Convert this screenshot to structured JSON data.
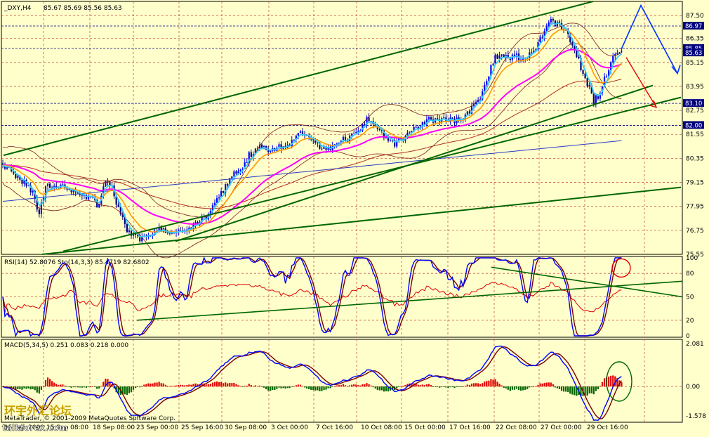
{
  "header": {
    "symbol": "_DXY,H4",
    "ohlc": "85.67 85.69 85.56 85.63"
  },
  "indicators": {
    "rsi_label": "RSI(14) 52.8076",
    "sto_label": "Sto(14,3,3) 85.4719 82.6802",
    "macd_label": "MACD(5,34,5) 0.251 0.083 0.218 0.000"
  },
  "price_axis": {
    "ticks": [
      "87.50",
      "86.35",
      "85.15",
      "83.95",
      "82.75",
      "81.55",
      "80.35",
      "79.15",
      "77.95",
      "76.75",
      "75.55"
    ],
    "tags": [
      {
        "label": "86.97",
        "value": 86.97
      },
      {
        "label": "85.85",
        "value": 85.85
      },
      {
        "label": "85.63",
        "value": 85.63
      },
      {
        "label": "83.10",
        "value": 83.1
      },
      {
        "label": "82.00",
        "value": 82.0
      }
    ]
  },
  "osc_axis": {
    "ticks": [
      "100",
      "80",
      "50",
      "20",
      "0"
    ]
  },
  "macd_axis": {
    "ticks": [
      "2.081",
      "0.00",
      "-1.578"
    ]
  },
  "time_axis": {
    "labels": [
      "15 Sep 2000",
      "15 Sep 08:00",
      "18 Sep 08:00",
      "23 Sep 00:00",
      "25 Sep 16:00",
      "30 Sep 08:00",
      "3 Oct 00:00",
      "7 Oct 16:00",
      "10 Oct 08:00",
      "15 Oct 00:00",
      "17 Oct 16:00",
      "22 Oct 08:00",
      "27 Oct 00:00",
      "29 Oct 16:00"
    ]
  },
  "watermark": {
    "text": "MetaTrader, © 2001-2009 MetaQuotes Software Corp.",
    "site": "talkforex.com",
    "logo_text": "环宇外汇论坛"
  },
  "colors": {
    "background": "#FFFFCC",
    "bull": "#0000FF",
    "bear": "#000080",
    "ema_cyan": "#33CCFF",
    "ema_orange": "#FF9900",
    "ema_magenta": "#FF00FF",
    "sma_red": "#B03020",
    "sma_blue": "#2B39C8",
    "trend_green": "#006600",
    "forecast_blue": "#0033FF",
    "forecast_red": "#E00000",
    "rsi": "#E00000",
    "sto_main": "#0000FF",
    "sto_signal": "#7A0000",
    "hist_pos": "#E00000",
    "hist_neg": "#006600"
  },
  "chart_data": {
    "type": "line",
    "symbol": "_DXY",
    "timeframe": "H4",
    "ylim": [
      75.55,
      88.2
    ],
    "close_anchors": [
      [
        0,
        80.3
      ],
      [
        10,
        79.8
      ],
      [
        20,
        79.6
      ],
      [
        30,
        79.2
      ],
      [
        40,
        79.0
      ],
      [
        50,
        78.4
      ],
      [
        55,
        77.6
      ],
      [
        65,
        78.9
      ],
      [
        80,
        79.0
      ],
      [
        95,
        78.9
      ],
      [
        110,
        78.5
      ],
      [
        125,
        78.4
      ],
      [
        140,
        78.0
      ],
      [
        150,
        79.1
      ],
      [
        158,
        79.0
      ],
      [
        170,
        77.6
      ],
      [
        185,
        76.5
      ],
      [
        195,
        76.4
      ],
      [
        205,
        76.3
      ],
      [
        220,
        76.7
      ],
      [
        235,
        76.8
      ],
      [
        250,
        76.7
      ],
      [
        265,
        76.9
      ],
      [
        280,
        77.0
      ],
      [
        295,
        77.5
      ],
      [
        305,
        78.0
      ],
      [
        320,
        78.8
      ],
      [
        330,
        79.6
      ],
      [
        345,
        79.8
      ],
      [
        355,
        80.5
      ],
      [
        370,
        80.9
      ],
      [
        385,
        80.8
      ],
      [
        400,
        80.9
      ],
      [
        415,
        81.1
      ],
      [
        425,
        81.7
      ],
      [
        440,
        81.5
      ],
      [
        455,
        81.0
      ],
      [
        470,
        80.9
      ],
      [
        485,
        81.2
      ],
      [
        500,
        81.4
      ],
      [
        512,
        81.7
      ],
      [
        525,
        82.4
      ],
      [
        535,
        81.9
      ],
      [
        548,
        81.5
      ],
      [
        560,
        81.1
      ],
      [
        572,
        81.2
      ],
      [
        585,
        81.7
      ],
      [
        598,
        82.0
      ],
      [
        610,
        82.3
      ],
      [
        625,
        82.2
      ],
      [
        640,
        82.3
      ],
      [
        655,
        82.2
      ],
      [
        670,
        82.8
      ],
      [
        685,
        83.5
      ],
      [
        695,
        84.5
      ],
      [
        705,
        85.4
      ],
      [
        715,
        85.6
      ],
      [
        725,
        85.3
      ],
      [
        735,
        85.5
      ],
      [
        745,
        85.3
      ],
      [
        755,
        85.6
      ],
      [
        765,
        86.0
      ],
      [
        775,
        86.6
      ],
      [
        785,
        87.3
      ],
      [
        795,
        87.0
      ],
      [
        805,
        86.9
      ],
      [
        815,
        86.0
      ],
      [
        825,
        85.2
      ],
      [
        832,
        84.3
      ],
      [
        840,
        83.9
      ],
      [
        846,
        83.2
      ],
      [
        852,
        83.5
      ],
      [
        858,
        84.0
      ],
      [
        865,
        84.7
      ],
      [
        872,
        85.3
      ],
      [
        880,
        85.7
      ],
      [
        887,
        85.6
      ]
    ],
    "moving_averages": [
      {
        "name": "EMA fast",
        "color": "#33CCFF"
      },
      {
        "name": "EMA mid",
        "color": "#FF9900"
      },
      {
        "name": "EMA slow",
        "color": "#FF00FF"
      },
      {
        "name": "SMA 100",
        "color": "#B03020"
      },
      {
        "name": "SMA 200",
        "color": "#2B39C8"
      }
    ],
    "trendlines": [
      {
        "from": [
          5,
          80.5
        ],
        "to": [
          845,
          88.2
        ],
        "color": "#006600"
      },
      {
        "from": [
          90,
          75.7
        ],
        "to": [
          970,
          83.4
        ],
        "color": "#006600"
      },
      {
        "from": [
          250,
          76.2
        ],
        "to": [
          930,
          84.0
        ],
        "color": "#006600"
      },
      {
        "from": [
          60,
          75.55
        ],
        "to": [
          970,
          78.9
        ],
        "color": "#006600"
      }
    ],
    "forecast": {
      "blue": [
        [
          885,
          85.8
        ],
        [
          913,
          88.0
        ],
        [
          965,
          84.6
        ]
      ],
      "red": [
        [
          892,
          85.4
        ],
        [
          935,
          82.9
        ]
      ]
    },
    "rsi": {
      "value": 52.8076,
      "ylim": [
        0,
        100
      ]
    },
    "stochastic": {
      "main": 85.4719,
      "signal": 82.6802,
      "ylim": [
        0,
        100
      ]
    },
    "macd": {
      "values": [
        0.251,
        0.083,
        0.218,
        0.0
      ],
      "ylim": [
        -1.578,
        2.081
      ]
    }
  }
}
